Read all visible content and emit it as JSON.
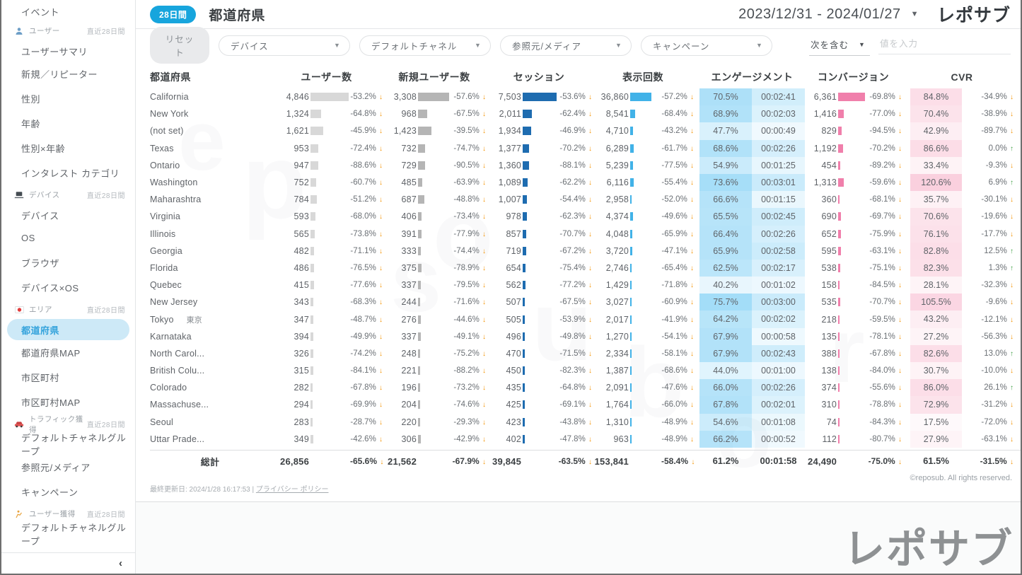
{
  "sidebar": {
    "items": [
      {
        "type": "item",
        "label": "イベント"
      },
      {
        "type": "section",
        "label": "ユーザー",
        "icon": "user-icon",
        "period": "直近28日間"
      },
      {
        "type": "item",
        "label": "ユーザーサマリ"
      },
      {
        "type": "item",
        "label": "新規／リピーター"
      },
      {
        "type": "item",
        "label": "性別"
      },
      {
        "type": "item",
        "label": "年齢"
      },
      {
        "type": "item",
        "label": "性別×年齢"
      },
      {
        "type": "item",
        "label": "インタレスト カテゴリ"
      },
      {
        "type": "section",
        "label": "デバイス",
        "icon": "device-icon",
        "period": "直近28日間"
      },
      {
        "type": "item",
        "label": "デバイス"
      },
      {
        "type": "item",
        "label": "OS"
      },
      {
        "type": "item",
        "label": "ブラウザ"
      },
      {
        "type": "item",
        "label": "デバイス×OS"
      },
      {
        "type": "section",
        "label": "エリア",
        "icon": "area-flag-icon",
        "period": "直近28日間"
      },
      {
        "type": "item",
        "label": "都道府県",
        "selected": true
      },
      {
        "type": "item",
        "label": "都道府県MAP"
      },
      {
        "type": "item",
        "label": "市区町村"
      },
      {
        "type": "item",
        "label": "市区町村MAP"
      },
      {
        "type": "section",
        "label": "トラフィック獲得",
        "icon": "traffic-car-icon",
        "period": "直近28日間"
      },
      {
        "type": "item",
        "label": "デフォルトチャネルグループ"
      },
      {
        "type": "item",
        "label": "参照元/メディア"
      },
      {
        "type": "item",
        "label": "キャンペーン"
      },
      {
        "type": "section",
        "label": "ユーザー獲得",
        "icon": "user-acquisition-icon",
        "period": "直近28日間"
      },
      {
        "type": "item",
        "label": "デフォルトチャネルグループ"
      }
    ],
    "collapse_glyph": "‹"
  },
  "header": {
    "badge": "28日間",
    "title": "都道府県",
    "date_range": "2023/12/31 - 2024/01/27",
    "logo": "レポサブ"
  },
  "filters": {
    "reset_label": "リセット",
    "dropdowns": [
      "デバイス",
      "デフォルトチャネル",
      "参照元/メディア",
      "キャンペーン"
    ],
    "condition_label": "次を含む",
    "input_placeholder": "値を入力"
  },
  "table": {
    "headers": [
      "都道府県",
      "ユーザー数",
      "新規ユーザー数",
      "セッション",
      "表示回数",
      "エンゲージメント",
      "コンバージョン",
      "CVR"
    ],
    "rows": [
      {
        "label": "California",
        "u": [
          "4,846",
          4846,
          "-53.2%",
          "down"
        ],
        "n": [
          "3,308",
          3308,
          "-57.6%",
          "down"
        ],
        "s": [
          "7,503",
          7503,
          "-53.6%",
          "down"
        ],
        "v": [
          "36,860",
          36860,
          "-57.2%",
          "down"
        ],
        "e": [
          "70.5%",
          70.5,
          "00:02:41"
        ],
        "c": [
          "6,361",
          6361,
          "-69.8%",
          "down"
        ],
        "r": [
          "84.8%",
          84.8,
          "-34.9%",
          "down"
        ]
      },
      {
        "label": "New York",
        "u": [
          "1,324",
          1324,
          "-64.8%",
          "down"
        ],
        "n": [
          "968",
          968,
          "-67.5%",
          "down"
        ],
        "s": [
          "2,011",
          2011,
          "-62.4%",
          "down"
        ],
        "v": [
          "8,541",
          8541,
          "-68.4%",
          "down"
        ],
        "e": [
          "68.9%",
          68.9,
          "00:02:03"
        ],
        "c": [
          "1,416",
          1416,
          "-77.0%",
          "down"
        ],
        "r": [
          "70.4%",
          70.4,
          "-38.9%",
          "down"
        ]
      },
      {
        "label": "(not set)",
        "u": [
          "1,621",
          1621,
          "-45.9%",
          "down"
        ],
        "n": [
          "1,423",
          1423,
          "-39.5%",
          "down"
        ],
        "s": [
          "1,934",
          1934,
          "-46.9%",
          "down"
        ],
        "v": [
          "4,710",
          4710,
          "-43.2%",
          "down"
        ],
        "e": [
          "47.7%",
          47.7,
          "00:00:49"
        ],
        "c": [
          "829",
          829,
          "-94.5%",
          "down"
        ],
        "r": [
          "42.9%",
          42.9,
          "-89.7%",
          "down"
        ]
      },
      {
        "label": "Texas",
        "u": [
          "953",
          953,
          "-72.4%",
          "down"
        ],
        "n": [
          "732",
          732,
          "-74.7%",
          "down"
        ],
        "s": [
          "1,377",
          1377,
          "-70.2%",
          "down"
        ],
        "v": [
          "6,289",
          6289,
          "-61.7%",
          "down"
        ],
        "e": [
          "68.6%",
          68.6,
          "00:02:26"
        ],
        "c": [
          "1,192",
          1192,
          "-70.2%",
          "down"
        ],
        "r": [
          "86.6%",
          86.6,
          "0.0%",
          "up"
        ]
      },
      {
        "label": "Ontario",
        "u": [
          "947",
          947,
          "-88.6%",
          "down"
        ],
        "n": [
          "729",
          729,
          "-90.5%",
          "down"
        ],
        "s": [
          "1,360",
          1360,
          "-88.1%",
          "down"
        ],
        "v": [
          "5,239",
          5239,
          "-77.5%",
          "down"
        ],
        "e": [
          "54.9%",
          54.9,
          "00:01:25"
        ],
        "c": [
          "454",
          454,
          "-89.2%",
          "down"
        ],
        "r": [
          "33.4%",
          33.4,
          "-9.3%",
          "down"
        ]
      },
      {
        "label": "Washington",
        "u": [
          "752",
          752,
          "-60.7%",
          "down"
        ],
        "n": [
          "485",
          485,
          "-63.9%",
          "down"
        ],
        "s": [
          "1,089",
          1089,
          "-62.2%",
          "down"
        ],
        "v": [
          "6,116",
          6116,
          "-55.4%",
          "down"
        ],
        "e": [
          "73.6%",
          73.6,
          "00:03:01"
        ],
        "c": [
          "1,313",
          1313,
          "-59.6%",
          "down"
        ],
        "r": [
          "120.6%",
          120.6,
          "6.9%",
          "up"
        ]
      },
      {
        "label": "Maharashtra",
        "u": [
          "784",
          784,
          "-51.2%",
          "down"
        ],
        "n": [
          "687",
          687,
          "-48.8%",
          "down"
        ],
        "s": [
          "1,007",
          1007,
          "-54.4%",
          "down"
        ],
        "v": [
          "2,958",
          2958,
          "-52.0%",
          "down"
        ],
        "e": [
          "66.6%",
          66.6,
          "00:01:15"
        ],
        "c": [
          "360",
          360,
          "-68.1%",
          "down"
        ],
        "r": [
          "35.7%",
          35.7,
          "-30.1%",
          "down"
        ]
      },
      {
        "label": "Virginia",
        "u": [
          "593",
          593,
          "-68.0%",
          "down"
        ],
        "n": [
          "406",
          406,
          "-73.4%",
          "down"
        ],
        "s": [
          "978",
          978,
          "-62.3%",
          "down"
        ],
        "v": [
          "4,374",
          4374,
          "-49.6%",
          "down"
        ],
        "e": [
          "65.5%",
          65.5,
          "00:02:45"
        ],
        "c": [
          "690",
          690,
          "-69.7%",
          "down"
        ],
        "r": [
          "70.6%",
          70.6,
          "-19.6%",
          "down"
        ]
      },
      {
        "label": "Illinois",
        "u": [
          "565",
          565,
          "-73.8%",
          "down"
        ],
        "n": [
          "391",
          391,
          "-77.9%",
          "down"
        ],
        "s": [
          "857",
          857,
          "-70.7%",
          "down"
        ],
        "v": [
          "4,048",
          4048,
          "-65.9%",
          "down"
        ],
        "e": [
          "66.4%",
          66.4,
          "00:02:26"
        ],
        "c": [
          "652",
          652,
          "-75.9%",
          "down"
        ],
        "r": [
          "76.1%",
          76.1,
          "-17.7%",
          "down"
        ]
      },
      {
        "label": "Georgia",
        "u": [
          "482",
          482,
          "-71.1%",
          "down"
        ],
        "n": [
          "333",
          333,
          "-74.4%",
          "down"
        ],
        "s": [
          "719",
          719,
          "-67.2%",
          "down"
        ],
        "v": [
          "3,720",
          3720,
          "-47.1%",
          "down"
        ],
        "e": [
          "65.9%",
          65.9,
          "00:02:58"
        ],
        "c": [
          "595",
          595,
          "-63.1%",
          "down"
        ],
        "r": [
          "82.8%",
          82.8,
          "12.5%",
          "up"
        ]
      },
      {
        "label": "Florida",
        "u": [
          "486",
          486,
          "-76.5%",
          "down"
        ],
        "n": [
          "375",
          375,
          "-78.9%",
          "down"
        ],
        "s": [
          "654",
          654,
          "-75.4%",
          "down"
        ],
        "v": [
          "2,746",
          2746,
          "-65.4%",
          "down"
        ],
        "e": [
          "62.5%",
          62.5,
          "00:02:17"
        ],
        "c": [
          "538",
          538,
          "-75.1%",
          "down"
        ],
        "r": [
          "82.3%",
          82.3,
          "1.3%",
          "up"
        ]
      },
      {
        "label": "Quebec",
        "u": [
          "415",
          415,
          "-77.6%",
          "down"
        ],
        "n": [
          "337",
          337,
          "-79.5%",
          "down"
        ],
        "s": [
          "562",
          562,
          "-77.2%",
          "down"
        ],
        "v": [
          "1,429",
          1429,
          "-71.8%",
          "down"
        ],
        "e": [
          "40.2%",
          40.2,
          "00:01:02"
        ],
        "c": [
          "158",
          158,
          "-84.5%",
          "down"
        ],
        "r": [
          "28.1%",
          28.1,
          "-32.3%",
          "down"
        ]
      },
      {
        "label": "New Jersey",
        "u": [
          "343",
          343,
          "-68.3%",
          "down"
        ],
        "n": [
          "244",
          244,
          "-71.6%",
          "down"
        ],
        "s": [
          "507",
          507,
          "-67.5%",
          "down"
        ],
        "v": [
          "3,027",
          3027,
          "-60.9%",
          "down"
        ],
        "e": [
          "75.7%",
          75.7,
          "00:03:00"
        ],
        "c": [
          "535",
          535,
          "-70.7%",
          "down"
        ],
        "r": [
          "105.5%",
          105.5,
          "-9.6%",
          "down"
        ]
      },
      {
        "label": "Tokyo",
        "sub": "東京",
        "u": [
          "347",
          347,
          "-48.7%",
          "down"
        ],
        "n": [
          "276",
          276,
          "-44.6%",
          "down"
        ],
        "s": [
          "505",
          505,
          "-53.9%",
          "down"
        ],
        "v": [
          "2,017",
          2017,
          "-41.9%",
          "down"
        ],
        "e": [
          "64.2%",
          64.2,
          "00:02:02"
        ],
        "c": [
          "218",
          218,
          "-59.5%",
          "down"
        ],
        "r": [
          "43.2%",
          43.2,
          "-12.1%",
          "down"
        ]
      },
      {
        "label": "Karnataka",
        "u": [
          "394",
          394,
          "-49.9%",
          "down"
        ],
        "n": [
          "337",
          337,
          "-49.1%",
          "down"
        ],
        "s": [
          "496",
          496,
          "-49.8%",
          "down"
        ],
        "v": [
          "1,270",
          1270,
          "-54.1%",
          "down"
        ],
        "e": [
          "67.9%",
          67.9,
          "00:00:58"
        ],
        "c": [
          "135",
          135,
          "-78.1%",
          "down"
        ],
        "r": [
          "27.2%",
          27.2,
          "-56.3%",
          "down"
        ]
      },
      {
        "label": "North Carol...",
        "u": [
          "326",
          326,
          "-74.2%",
          "down"
        ],
        "n": [
          "248",
          248,
          "-75.2%",
          "down"
        ],
        "s": [
          "470",
          470,
          "-71.5%",
          "down"
        ],
        "v": [
          "2,334",
          2334,
          "-58.1%",
          "down"
        ],
        "e": [
          "67.9%",
          67.9,
          "00:02:43"
        ],
        "c": [
          "388",
          388,
          "-67.8%",
          "down"
        ],
        "r": [
          "82.6%",
          82.6,
          "13.0%",
          "up"
        ]
      },
      {
        "label": "British Colu...",
        "u": [
          "315",
          315,
          "-84.1%",
          "down"
        ],
        "n": [
          "221",
          221,
          "-88.2%",
          "down"
        ],
        "s": [
          "450",
          450,
          "-82.3%",
          "down"
        ],
        "v": [
          "1,387",
          1387,
          "-68.6%",
          "down"
        ],
        "e": [
          "44.0%",
          44.0,
          "00:01:00"
        ],
        "c": [
          "138",
          138,
          "-84.0%",
          "down"
        ],
        "r": [
          "30.7%",
          30.7,
          "-10.0%",
          "down"
        ]
      },
      {
        "label": "Colorado",
        "u": [
          "282",
          282,
          "-67.8%",
          "down"
        ],
        "n": [
          "196",
          196,
          "-73.2%",
          "down"
        ],
        "s": [
          "435",
          435,
          "-64.8%",
          "down"
        ],
        "v": [
          "2,091",
          2091,
          "-47.6%",
          "down"
        ],
        "e": [
          "66.0%",
          66.0,
          "00:02:26"
        ],
        "c": [
          "374",
          374,
          "-55.6%",
          "down"
        ],
        "r": [
          "86.0%",
          86.0,
          "26.1%",
          "up"
        ]
      },
      {
        "label": "Massachuse...",
        "u": [
          "294",
          294,
          "-69.9%",
          "down"
        ],
        "n": [
          "204",
          204,
          "-74.6%",
          "down"
        ],
        "s": [
          "425",
          425,
          "-69.1%",
          "down"
        ],
        "v": [
          "1,764",
          1764,
          "-66.0%",
          "down"
        ],
        "e": [
          "67.8%",
          67.8,
          "00:02:01"
        ],
        "c": [
          "310",
          310,
          "-78.8%",
          "down"
        ],
        "r": [
          "72.9%",
          72.9,
          "-31.2%",
          "down"
        ]
      },
      {
        "label": "Seoul",
        "u": [
          "283",
          283,
          "-28.7%",
          "down"
        ],
        "n": [
          "220",
          220,
          "-29.3%",
          "down"
        ],
        "s": [
          "423",
          423,
          "-43.8%",
          "down"
        ],
        "v": [
          "1,310",
          1310,
          "-48.9%",
          "down"
        ],
        "e": [
          "54.6%",
          54.6,
          "00:01:08"
        ],
        "c": [
          "74",
          74,
          "-84.3%",
          "down"
        ],
        "r": [
          "17.5%",
          17.5,
          "-72.0%",
          "down"
        ]
      },
      {
        "label": "Uttar Prade...",
        "u": [
          "349",
          349,
          "-42.6%",
          "down"
        ],
        "n": [
          "306",
          306,
          "-42.9%",
          "down"
        ],
        "s": [
          "402",
          402,
          "-47.8%",
          "down"
        ],
        "v": [
          "963",
          963,
          "-48.9%",
          "down"
        ],
        "e": [
          "66.2%",
          66.2,
          "00:00:52"
        ],
        "c": [
          "112",
          112,
          "-80.7%",
          "down"
        ],
        "r": [
          "27.9%",
          27.9,
          "-63.1%",
          "down"
        ]
      }
    ],
    "total": {
      "label": "総計",
      "u": [
        "26,856",
        null,
        "-65.6%",
        "down"
      ],
      "n": [
        "21,562",
        null,
        "-67.9%",
        "down"
      ],
      "s": [
        "39,845",
        null,
        "-63.5%",
        "down"
      ],
      "v": [
        "153,841",
        null,
        "-58.4%",
        "down"
      ],
      "e": [
        "61.2%",
        null,
        "00:01:58"
      ],
      "c": [
        "24,490",
        null,
        "-75.0%",
        "down"
      ],
      "r": [
        "61.5%",
        null,
        "-31.5%",
        "down"
      ]
    }
  },
  "footer": {
    "last_updated": "最終更新日: 2024/1/28 16:17:53",
    "privacy_link": "プライバシー ポリシー",
    "copyright": "©reposub. All rights reserved."
  },
  "watermark_logo": "レポサブ",
  "colors": {
    "accent": "#17a5dd",
    "selected_bg": "#cde9f7",
    "selected_text": "#35a3dc",
    "bar_users": "#d8d8d8",
    "bar_new_users": "#b5b5b5",
    "bar_sessions": "#1e6cb0",
    "bar_views": "#41b2e8",
    "bar_conversions": "#f07fab",
    "engagement_cell": "#5bc2f2",
    "cvr_cell": "#f06292",
    "arrow_down": "#f39200",
    "arrow_up": "#43a047"
  }
}
